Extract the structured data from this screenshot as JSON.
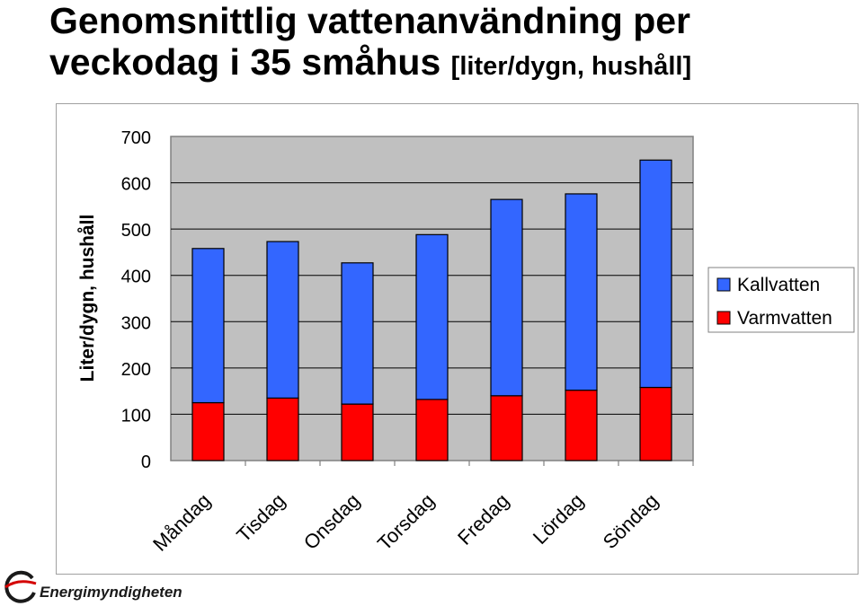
{
  "title": {
    "main": "Genomsnittlig vattenanvändning per veckodag i 35 småhus",
    "unit": "[liter/dygn, hushåll]"
  },
  "logo": {
    "text": "Energimyndigheten"
  },
  "colors": {
    "kallvatten": "#3366ff",
    "varmvatten": "#ff0000",
    "plot_bg": "#c0c0c0"
  },
  "chart_data": {
    "type": "bar",
    "stacked": true,
    "categories": [
      "Måndag",
      "Tisdag",
      "Onsdag",
      "Torsdag",
      "Fredag",
      "Lördag",
      "Söndag"
    ],
    "series": [
      {
        "name": "Varmvatten",
        "values": [
          125,
          135,
          122,
          132,
          140,
          152,
          158
        ]
      },
      {
        "name": "Kallvatten",
        "values": [
          333,
          338,
          305,
          356,
          424,
          424,
          491
        ]
      }
    ],
    "title": "Genomsnittlig vattenanvändning per veckodag i 35 småhus [liter/dygn, hushåll]",
    "xlabel": "",
    "ylabel": "Liter/dygn, hushåll",
    "ylim": [
      0,
      700
    ],
    "yticks": [
      "0",
      "100",
      "200",
      "300",
      "400",
      "500",
      "600",
      "700"
    ],
    "grid": true,
    "legend": {
      "position": "right",
      "entries": [
        "Kallvatten",
        "Varmvatten"
      ]
    }
  }
}
